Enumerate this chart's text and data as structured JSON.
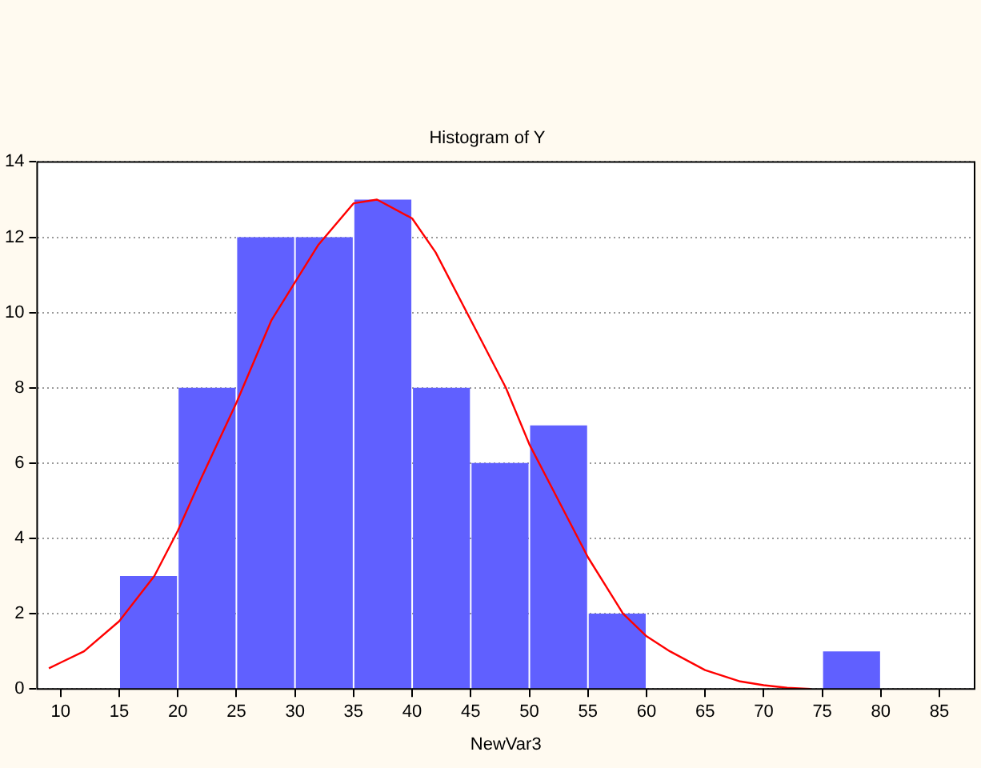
{
  "chart_data": {
    "type": "histogram",
    "title": "Histogram of Y",
    "xlabel": "NewVar3",
    "bins": [
      15,
      20,
      25,
      30,
      35,
      40,
      45,
      50,
      55,
      60,
      65,
      70,
      75,
      80
    ],
    "values": [
      3,
      8,
      12,
      12,
      13,
      8,
      6,
      7,
      2,
      0,
      0,
      0,
      1
    ],
    "color": "#6060ff",
    "series": [
      {
        "type": "line",
        "color": "#ff0000",
        "x": [
          9,
          10,
          12,
          15,
          18,
          20,
          22,
          25,
          28,
          30,
          32,
          35,
          37,
          40,
          42,
          45,
          48,
          50,
          52,
          55,
          58,
          60,
          62,
          65,
          68,
          70,
          72,
          74
        ],
        "values": [
          0.55,
          0.7,
          1.0,
          1.8,
          3.0,
          4.2,
          5.6,
          7.6,
          9.8,
          10.8,
          11.8,
          12.9,
          13.0,
          12.5,
          11.6,
          9.8,
          8.0,
          6.5,
          5.3,
          3.5,
          2.0,
          1.4,
          1.0,
          0.5,
          0.2,
          0.1,
          0.03,
          0
        ]
      }
    ],
    "xlim": [
      8,
      88
    ],
    "xticks": [
      10,
      15,
      20,
      25,
      30,
      35,
      40,
      45,
      50,
      55,
      60,
      65,
      70,
      75,
      80,
      85
    ],
    "ylim": [
      0,
      14
    ],
    "yticks": [
      0,
      2,
      4,
      6,
      8,
      10,
      12,
      14
    ],
    "grid": "y",
    "marker": "none"
  }
}
